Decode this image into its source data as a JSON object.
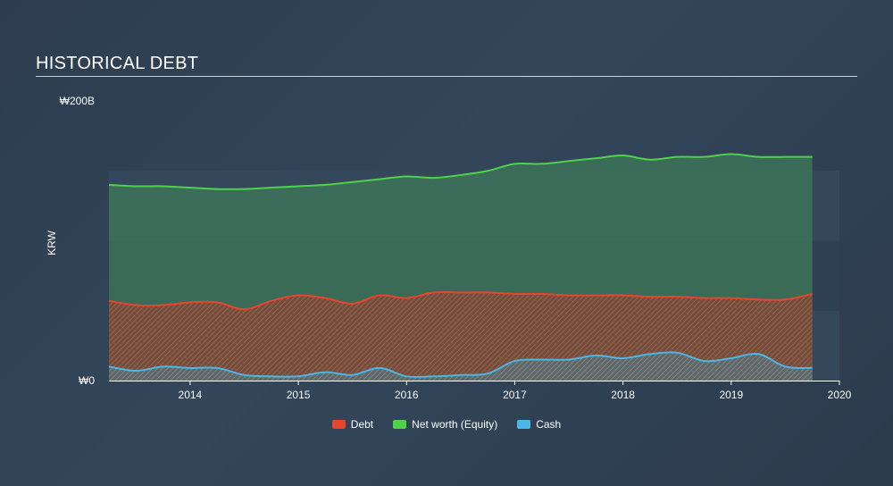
{
  "title": "HISTORICAL DEBT",
  "chart_data": {
    "type": "area",
    "title": "HISTORICAL DEBT",
    "ylabel": "KRW",
    "xlabel": "",
    "ylim": [
      0,
      200
    ],
    "y_unit": "₩ billions",
    "y_tick_labels": [
      {
        "value": 200,
        "label": "₩200B"
      },
      {
        "value": 0,
        "label": "₩0"
      }
    ],
    "xlim": [
      2013.25,
      2020.0
    ],
    "x_tick_labels": [
      "2014",
      "2015",
      "2016",
      "2017",
      "2018",
      "2019",
      "2020"
    ],
    "x_tick_values": [
      2014,
      2015,
      2016,
      2017,
      2018,
      2019,
      2020
    ],
    "grid": true,
    "legend_position": "bottom-center",
    "series": [
      {
        "name": "Net worth (Equity)",
        "color": "#4fd14a",
        "x": [
          2013.25,
          2013.5,
          2013.75,
          2014.0,
          2014.25,
          2014.5,
          2014.75,
          2015.0,
          2015.25,
          2015.5,
          2015.75,
          2016.0,
          2016.25,
          2016.5,
          2016.75,
          2017.0,
          2017.25,
          2017.5,
          2017.75,
          2018.0,
          2018.25,
          2018.5,
          2018.75,
          2019.0,
          2019.25,
          2019.5,
          2019.75
        ],
        "values": [
          140,
          139,
          139,
          138,
          137,
          137,
          138,
          139,
          140,
          142,
          144,
          146,
          145,
          147,
          150,
          155,
          155,
          157,
          159,
          161,
          158,
          160,
          160,
          162,
          160,
          160,
          160
        ]
      },
      {
        "name": "Debt",
        "color": "#e8452f",
        "x": [
          2013.25,
          2013.5,
          2013.75,
          2014.0,
          2014.25,
          2014.5,
          2014.75,
          2015.0,
          2015.25,
          2015.5,
          2015.75,
          2016.0,
          2016.25,
          2016.5,
          2016.75,
          2017.0,
          2017.25,
          2017.5,
          2017.75,
          2018.0,
          2018.25,
          2018.5,
          2018.75,
          2019.0,
          2019.25,
          2019.5,
          2019.75
        ],
        "values": [
          57,
          54,
          54,
          56,
          56,
          51,
          57,
          61,
          59,
          55,
          61,
          59,
          63,
          63,
          63,
          62,
          62,
          61,
          61,
          61,
          60,
          60,
          59,
          59,
          58,
          58,
          62
        ]
      },
      {
        "name": "Cash",
        "color": "#4ab7e6",
        "x": [
          2013.25,
          2013.5,
          2013.75,
          2014.0,
          2014.25,
          2014.5,
          2014.75,
          2015.0,
          2015.25,
          2015.5,
          2015.75,
          2016.0,
          2016.25,
          2016.5,
          2016.75,
          2017.0,
          2017.25,
          2017.5,
          2017.75,
          2018.0,
          2018.25,
          2018.5,
          2018.75,
          2019.0,
          2019.25,
          2019.5,
          2019.75
        ],
        "values": [
          10,
          7,
          10,
          9,
          9,
          4,
          3,
          3,
          6,
          4,
          9,
          3,
          3,
          4,
          5,
          14,
          15,
          15,
          18,
          16,
          19,
          20,
          14,
          16,
          19,
          10,
          9
        ]
      }
    ]
  },
  "legend": [
    {
      "label": "Debt",
      "color": "#e8452f"
    },
    {
      "label": "Net worth (Equity)",
      "color": "#4fd14a"
    },
    {
      "label": "Cash",
      "color": "#4ab7e6"
    }
  ]
}
